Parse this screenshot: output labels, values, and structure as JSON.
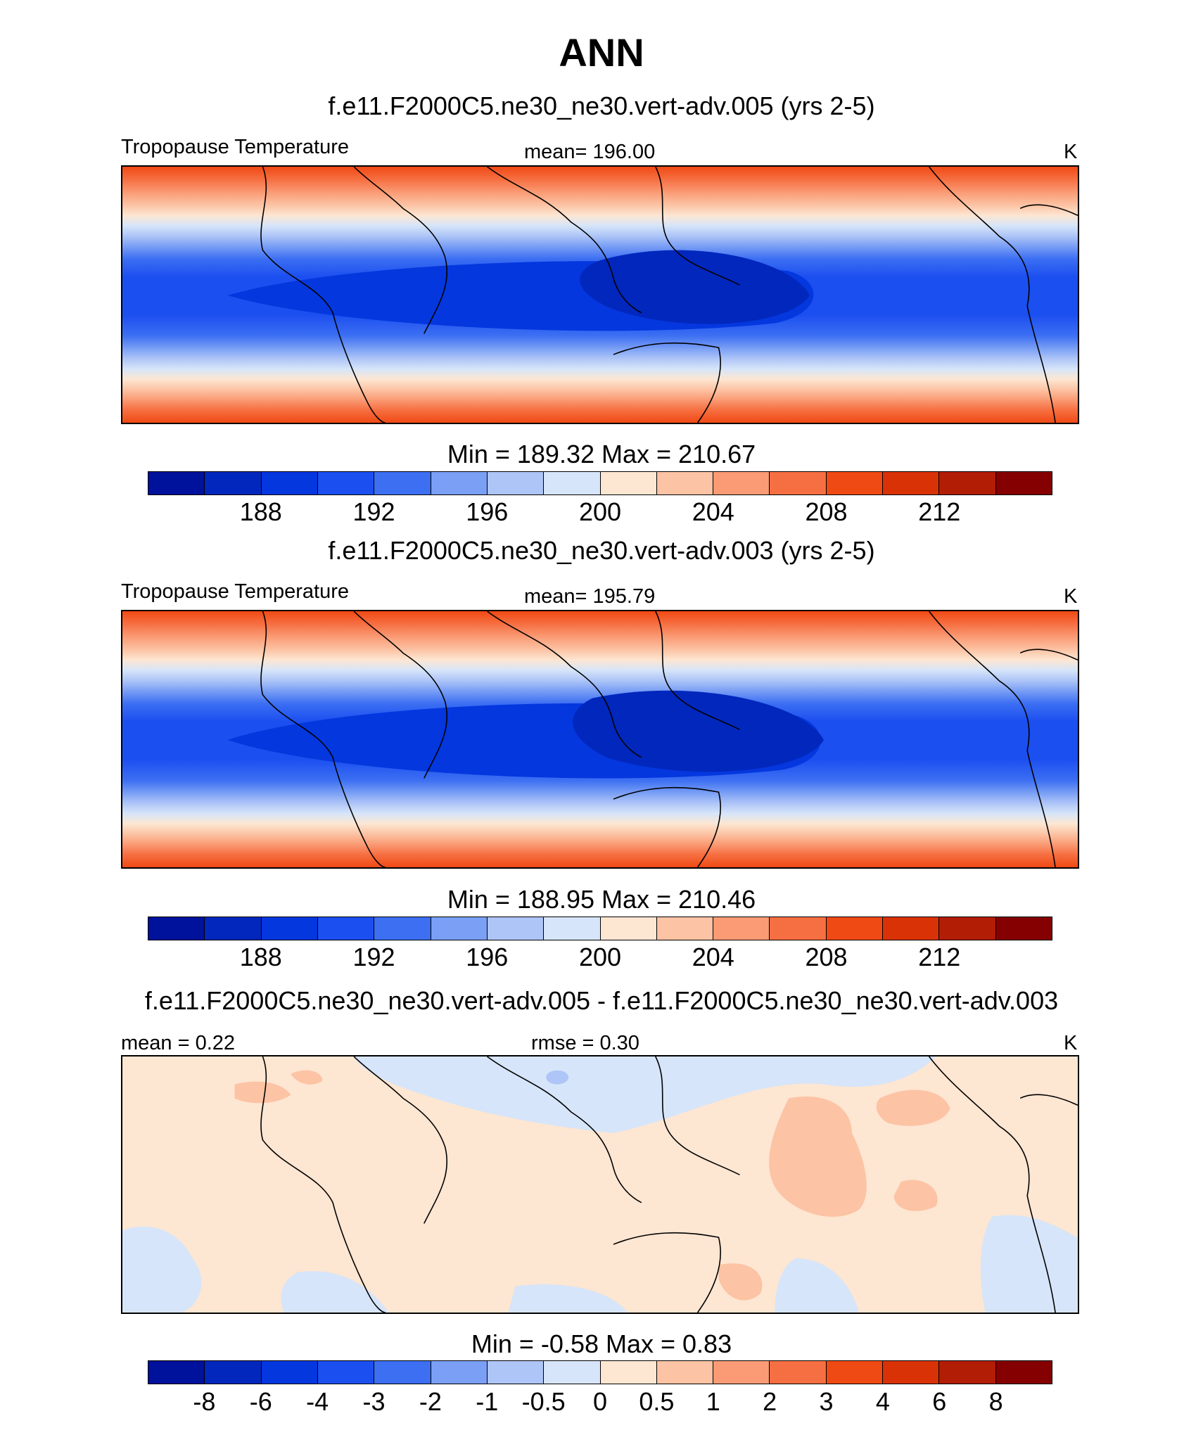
{
  "title": "ANN",
  "panels": [
    {
      "case": "f.e11.F2000C5.ne30_ne30.vert-adv.005 (yrs 2-5)",
      "left_label": "Tropopause Temperature",
      "center_label": "mean= 196.00",
      "units": "K",
      "minmax": "Min = 189.32 Max = 210.67",
      "colorbar_labels": [
        "188",
        "192",
        "196",
        "200",
        "204",
        "208",
        "212"
      ]
    },
    {
      "case": "f.e11.F2000C5.ne30_ne30.vert-adv.003 (yrs 2-5)",
      "left_label": "Tropopause Temperature",
      "center_label": "mean= 195.79",
      "units": "K",
      "minmax": "Min = 188.95 Max = 210.46",
      "colorbar_labels": [
        "188",
        "192",
        "196",
        "200",
        "204",
        "208",
        "212"
      ]
    },
    {
      "case": "f.e11.F2000C5.ne30_ne30.vert-adv.005 - f.e11.F2000C5.ne30_ne30.vert-adv.003",
      "left_label": "mean =   0.22",
      "center_label": "rmse =   0.30",
      "units": "K",
      "minmax": "Min =  -0.58 Max =   0.83",
      "colorbar_labels": [
        "-8",
        "-6",
        "-4",
        "-3",
        "-2",
        "-1",
        "-0.5",
        "0",
        "0.5",
        "1",
        "2",
        "3",
        "4",
        "6",
        "8"
      ]
    }
  ],
  "colorbar_colors": [
    "#00119b",
    "#0227bd",
    "#0437de",
    "#1c4ff0",
    "#3c6ff2",
    "#7a9ff5",
    "#aec5f7",
    "#d6e5f9",
    "#fde6d2",
    "#fcc3a4",
    "#fa9b75",
    "#f66f42",
    "#f04a14",
    "#d93207",
    "#b21d06",
    "#850000"
  ],
  "chart_data": [
    {
      "type": "filled-contour-map",
      "variable": "Tropopause Temperature",
      "units": "K",
      "mean": 196.0,
      "min": 189.32,
      "max": 210.67,
      "contour_levels": [
        186,
        188,
        190,
        192,
        194,
        196,
        198,
        200,
        202,
        204,
        206,
        208,
        210,
        212,
        214
      ]
    },
    {
      "type": "filled-contour-map",
      "variable": "Tropopause Temperature",
      "units": "K",
      "mean": 195.79,
      "min": 188.95,
      "max": 210.46,
      "contour_levels": [
        186,
        188,
        190,
        192,
        194,
        196,
        198,
        200,
        202,
        204,
        206,
        208,
        210,
        212,
        214
      ]
    },
    {
      "type": "filled-contour-map",
      "variable": "difference",
      "units": "K",
      "mean": 0.22,
      "rmse": 0.3,
      "min": -0.58,
      "max": 0.83,
      "contour_levels": [
        -8,
        -6,
        -4,
        -3,
        -2,
        -1,
        -0.5,
        0,
        0.5,
        1,
        2,
        3,
        4,
        6,
        8
      ]
    }
  ]
}
